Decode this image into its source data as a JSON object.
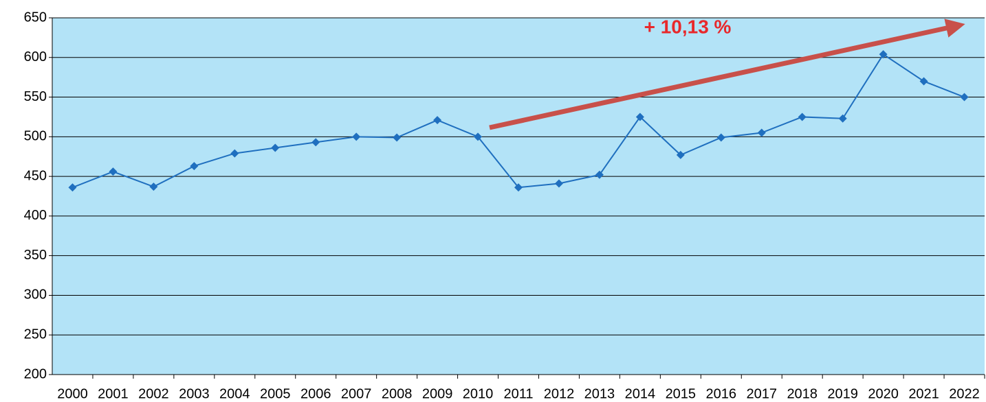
{
  "chart_data": {
    "type": "line",
    "categories": [
      "2000",
      "2001",
      "2002",
      "2003",
      "2004",
      "2005",
      "2006",
      "2007",
      "2008",
      "2009",
      "2010",
      "2011",
      "2012",
      "2013",
      "2014",
      "2015",
      "2016",
      "2017",
      "2018",
      "2019",
      "2020",
      "2021",
      "2022"
    ],
    "series": [
      {
        "color": "#1f6fbf",
        "values": [
          436,
          456,
          437,
          463,
          479,
          486,
          493,
          500,
          499,
          521,
          500,
          436,
          441,
          452,
          525,
          477,
          499,
          505,
          525,
          523,
          604,
          570,
          550
        ]
      }
    ],
    "ylim": [
      200,
      650
    ],
    "yticks": [
      200,
      250,
      300,
      350,
      400,
      450,
      500,
      550,
      600,
      650
    ],
    "grid": true,
    "background": "#b3e3f7",
    "annotation": "+ 10,13 %"
  }
}
